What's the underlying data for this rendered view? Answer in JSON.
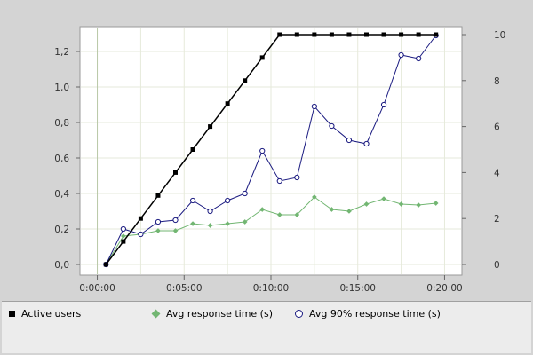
{
  "chart_data": {
    "type": "line",
    "x_tick_labels": [
      "0:00:00",
      "0:05:00",
      "0:10:00",
      "0:15:00",
      "0:20:00"
    ],
    "x_unit": "seconds",
    "xlim": [
      -60,
      1260
    ],
    "y_left": {
      "ylim": [
        0,
        1.3
      ],
      "ticks": [
        0.0,
        0.2,
        0.4,
        0.6,
        0.8,
        1.0,
        1.2
      ],
      "tick_labels": [
        "0,0",
        "0,2",
        "0,4",
        "0,6",
        "0,8",
        "1,0",
        "1,2"
      ]
    },
    "y_right": {
      "ylim": [
        0,
        10
      ],
      "ticks": [
        0,
        2,
        4,
        6,
        8,
        10
      ],
      "tick_labels": [
        "0",
        "2",
        "4",
        "6",
        "8",
        "10"
      ]
    },
    "grid": true,
    "legend_position": "bottom",
    "series": [
      {
        "name": "Active users",
        "axis": "right",
        "color": "#000000",
        "marker": "square-filled",
        "x": [
          30,
          90,
          150,
          210,
          270,
          330,
          390,
          450,
          510,
          570,
          630,
          690,
          750,
          810,
          870,
          930,
          990,
          1050,
          1110,
          1170
        ],
        "values": [
          0,
          1,
          2,
          3,
          4,
          5,
          6,
          7,
          8,
          9,
          10,
          10,
          10,
          10,
          10,
          10,
          10,
          10,
          10,
          10
        ]
      },
      {
        "name": "Avg response time (s)",
        "axis": "left",
        "color": "#72b672",
        "marker": "diamond-filled",
        "x": [
          30,
          90,
          150,
          210,
          270,
          330,
          390,
          450,
          510,
          570,
          630,
          690,
          750,
          810,
          870,
          930,
          990,
          1050,
          1110,
          1170
        ],
        "values": [
          0.0,
          0.16,
          0.17,
          0.19,
          0.19,
          0.23,
          0.22,
          0.23,
          0.24,
          0.31,
          0.28,
          0.28,
          0.38,
          0.31,
          0.3,
          0.34,
          0.37,
          0.34,
          0.335,
          0.345
        ]
      },
      {
        "name": "Avg 90% response time (s)",
        "axis": "left",
        "color": "#1a1a80",
        "marker": "circle-open",
        "x": [
          30,
          90,
          150,
          210,
          270,
          330,
          390,
          450,
          510,
          570,
          630,
          690,
          750,
          810,
          870,
          930,
          990,
          1050,
          1110,
          1170
        ],
        "values": [
          0.0,
          0.2,
          0.17,
          0.24,
          0.25,
          0.36,
          0.3,
          0.36,
          0.4,
          0.64,
          0.47,
          0.49,
          0.89,
          0.78,
          0.7,
          0.68,
          0.9,
          1.18,
          1.16,
          1.29
        ]
      }
    ]
  }
}
